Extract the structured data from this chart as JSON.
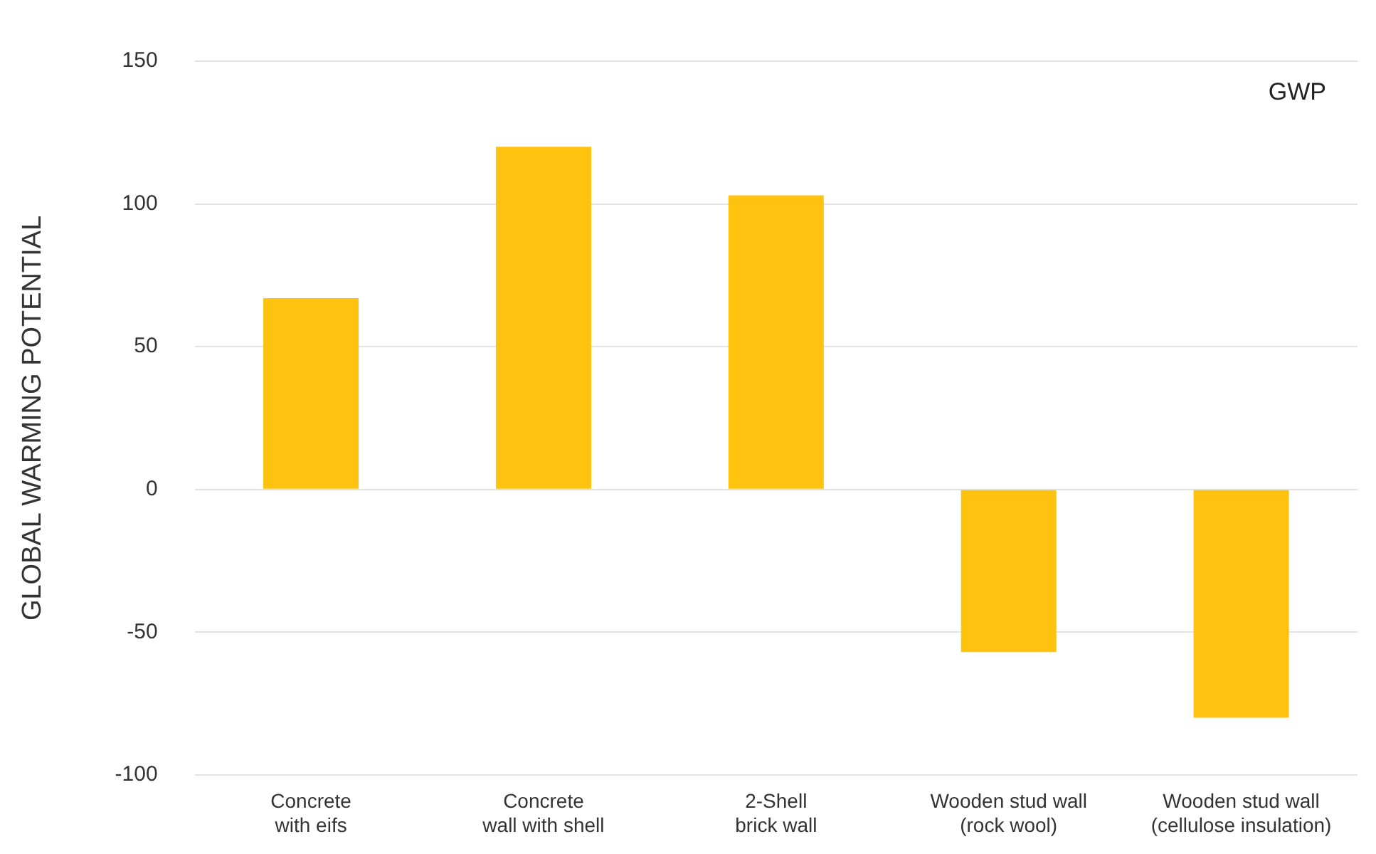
{
  "chart_data": {
    "type": "bar",
    "ylabel": "GLOBAL WARMING POTENTIAL",
    "annotations": [
      "GWP"
    ],
    "categories": [
      "Concrete\nwith eifs",
      "Concrete\nwall with shell",
      "2-Shell\nbrick wall",
      "Wooden stud wall\n(rock wool)",
      "Wooden stud wall\n(cellulose insulation)"
    ],
    "values": [
      67,
      120,
      103,
      -57,
      -80
    ],
    "color": "#ffc20e",
    "ylim": [
      -100,
      150
    ],
    "yticks": [
      -100,
      -50,
      0,
      50,
      100,
      150
    ],
    "grid": "y",
    "legend": false
  }
}
